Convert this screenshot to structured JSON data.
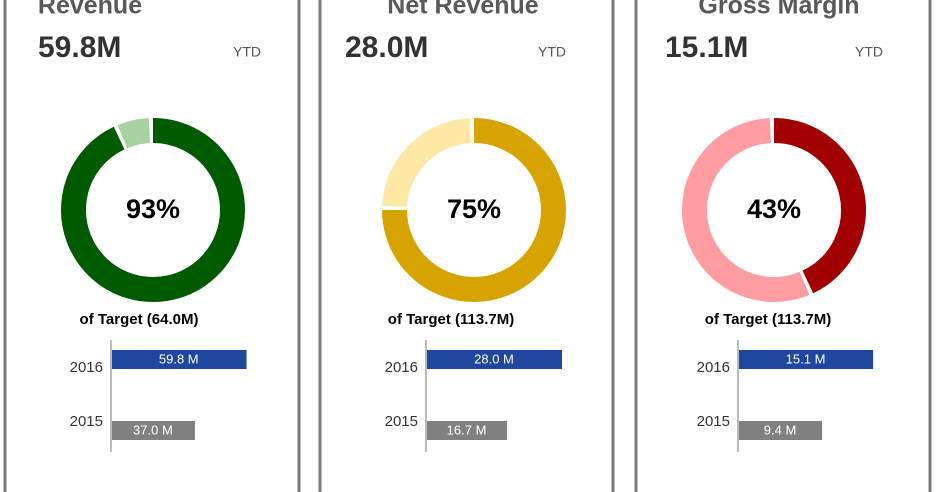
{
  "cards": [
    {
      "title": "Revenue",
      "value": "59.8M",
      "period": "YTD",
      "target_label": "of Target (64.0M)",
      "donut": {
        "type": "donut",
        "values": [
          93
        ],
        "value_labels": [
          "93%"
        ],
        "ylim": [
          0,
          100
        ],
        "color": "#005a00",
        "rest_color": "#a8d1a4"
      },
      "bars": {
        "type": "bar",
        "categories": [
          "2016",
          "2015"
        ],
        "values": [
          59.8,
          37.0
        ],
        "value_labels": [
          "59.8 M",
          "37.0 M"
        ],
        "colors": [
          "#1f47a0",
          "#808080"
        ],
        "xlim": [
          0,
          60
        ]
      }
    },
    {
      "title": "Net Revenue",
      "value": "28.0M",
      "period": "YTD",
      "target_label": "of Target (113.7M)",
      "donut": {
        "type": "donut",
        "values": [
          75
        ],
        "value_labels": [
          "75%"
        ],
        "ylim": [
          0,
          100
        ],
        "color": "#d7a300",
        "rest_color": "#fde8a6"
      },
      "bars": {
        "type": "bar",
        "categories": [
          "2016",
          "2015"
        ],
        "values": [
          28.0,
          16.7
        ],
        "value_labels": [
          "28.0 M",
          "16.7 M"
        ],
        "colors": [
          "#1f47a0",
          "#808080"
        ],
        "xlim": [
          0,
          28
        ]
      }
    },
    {
      "title": "Gross Margin",
      "value": "15.1M",
      "period": "YTD",
      "target_label": "of Target (113.7M)",
      "donut": {
        "type": "donut",
        "values": [
          43
        ],
        "value_labels": [
          "43%"
        ],
        "ylim": [
          0,
          100
        ],
        "color": "#a10000",
        "rest_color": "#ff9da3"
      },
      "bars": {
        "type": "bar",
        "categories": [
          "2016",
          "2015"
        ],
        "values": [
          15.1,
          9.4
        ],
        "value_labels": [
          "15.1 M",
          "9.4 M"
        ],
        "colors": [
          "#1f47a0",
          "#808080"
        ],
        "xlim": [
          0,
          15.2
        ]
      }
    }
  ]
}
